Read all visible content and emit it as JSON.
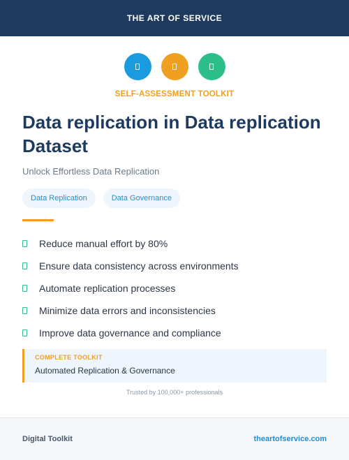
{
  "header": {
    "title": "THE ART OF SERVICE"
  },
  "icons": [
    {
      "name": "blue-badge-icon",
      "color": "#1a9be0"
    },
    {
      "name": "orange-badge-icon",
      "color": "#f0a020"
    },
    {
      "name": "green-badge-icon",
      "color": "#2dbf8a"
    }
  ],
  "kicker": "SELF-ASSESSMENT TOOLKIT",
  "title": "Data replication in Data replication Dataset",
  "subtitle": "Unlock Effortless Data Replication",
  "tags": [
    "Data Replication",
    "Data Governance"
  ],
  "benefits": [
    "Reduce manual effort by 80%",
    "Ensure data consistency across environments",
    "Automate replication processes",
    "Minimize data errors and inconsistencies",
    "Improve data governance and compliance"
  ],
  "callout": {
    "label": "COMPLETE TOOLKIT",
    "text": "Automated Replication & Governance"
  },
  "trusted": "Trusted by 100,000+ professionals",
  "footer": {
    "left": "Digital Toolkit",
    "right": "theartofservice.com"
  },
  "colors": {
    "navy": "#1e3a5f",
    "accent": "#f0a020",
    "link": "#1f8fd4",
    "success": "#2dbf8a"
  }
}
